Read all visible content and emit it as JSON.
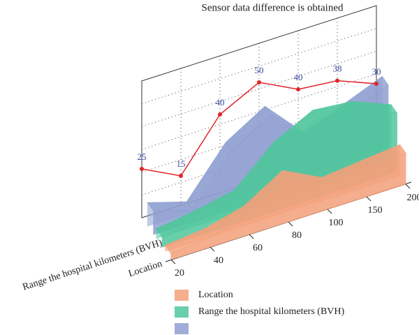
{
  "chart_data": {
    "type": "area3d",
    "title": "Sensor data difference is obtained",
    "categories": [
      "20",
      "40",
      "60",
      "80",
      "100",
      "150",
      "200"
    ],
    "depth_labels": [
      "Location",
      "Range the hospital kilometers (BVH)"
    ],
    "ylim": [
      0,
      70
    ],
    "series": [
      {
        "name": "Location",
        "color": "#f4a07a",
        "values": [
          3,
          5,
          10,
          22,
          12,
          14,
          16
        ]
      },
      {
        "name": "Range the hospital kilometers (BVH)",
        "color": "#4fc79c",
        "values": [
          5,
          8,
          12,
          30,
          40,
          38,
          30
        ]
      },
      {
        "color": "#8f9fd1",
        "values": [
          12,
          6,
          30,
          42,
          22,
          30,
          38
        ]
      }
    ],
    "line": {
      "color": "#e0242a",
      "values": [
        25,
        15,
        40,
        50,
        40,
        38,
        30
      ]
    }
  }
}
